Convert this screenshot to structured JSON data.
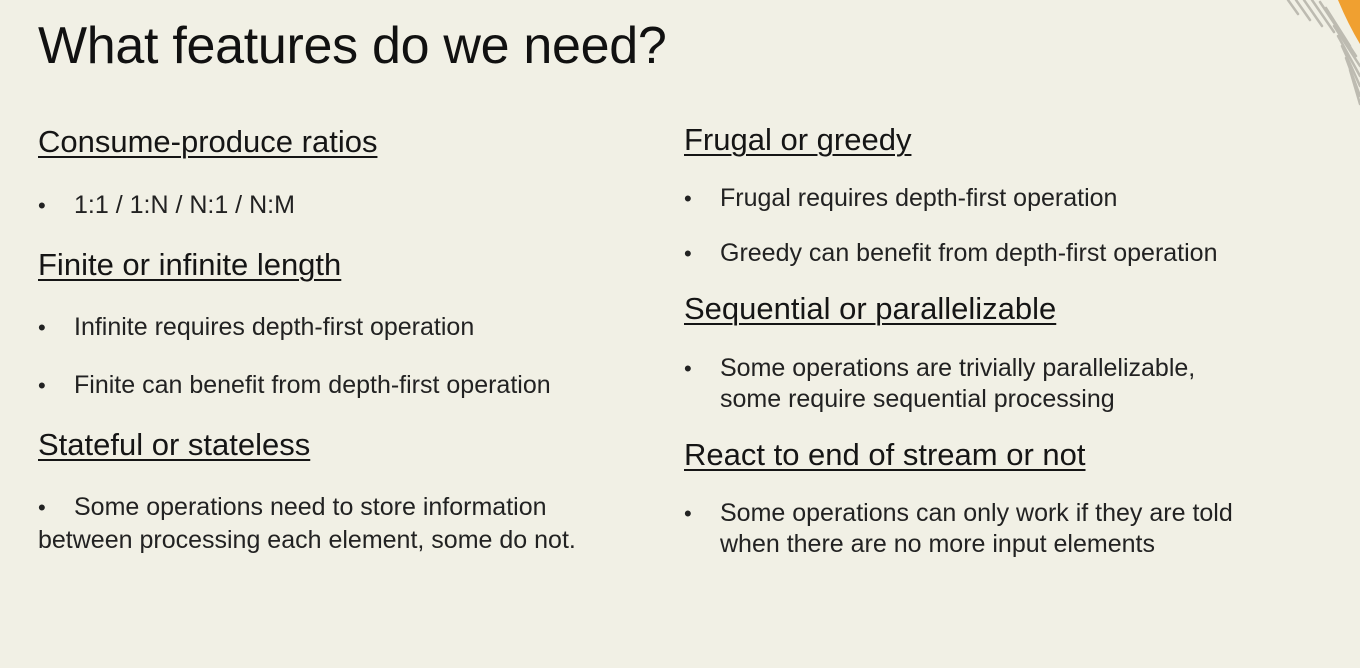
{
  "title": "What features do we need?",
  "colors": {
    "background": "#f1f0e5",
    "text": "#1c1c1c",
    "accent_orange": "#f0a030",
    "stripe": "#c9c7bd"
  },
  "left_column": {
    "sections": [
      {
        "heading": "Consume-produce ratios",
        "bullets": [
          "1:1 / 1:N / N:1 / N:M"
        ]
      },
      {
        "heading": "Finite or infinite length",
        "bullets": [
          "Infinite requires depth-first operation",
          "Finite can benefit from depth-first operation"
        ]
      },
      {
        "heading": "Stateful or stateless",
        "bullets": [
          "Some operations need to store information",
          "between processing each element, some do not."
        ]
      }
    ]
  },
  "right_column": {
    "sections": [
      {
        "heading": "Frugal or greedy",
        "bullets": [
          "Frugal requires depth-first operation",
          "Greedy can benefit from depth-first operation"
        ]
      },
      {
        "heading": "Sequential or parallelizable",
        "bullets": [
          "Some operations are trivially parallelizable,",
          "some require sequential processing"
        ]
      },
      {
        "heading": "React to end of stream or not",
        "bullets": [
          "Some operations can only work if they are told",
          "when there are no more input elements"
        ]
      }
    ]
  },
  "bullet_glyph": "•",
  "decoration_icon": "striped-corner-icon"
}
